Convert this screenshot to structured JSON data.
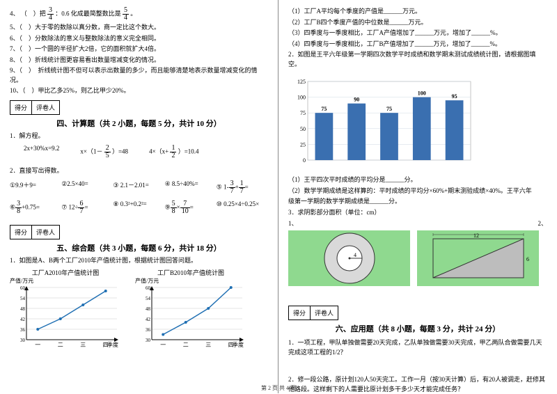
{
  "left": {
    "judge": [
      {
        "n": "4、",
        "t": "（　）把",
        "f1": {
          "n": "3",
          "d": "4"
        },
        "mid": "：0.6 化成最简整数比是",
        "f2": {
          "n": "5",
          "d": "4"
        },
        "end": "。"
      },
      {
        "n": "5、",
        "t": "（　）大于零的数除以真分数，商一定比这个数大。"
      },
      {
        "n": "6、",
        "t": "（　）分数除法的意义与整数除法的意义完全相同。"
      },
      {
        "n": "7、",
        "t": "（　）一个圆的半径扩大2倍，它的面积就扩大4倍。"
      },
      {
        "n": "8、",
        "t": "（　）折线统计图更容易看出数量增减变化的情况。"
      },
      {
        "n": "9、",
        "t": "（　）　折线统计图不但可以表示出数量的多少，而且能够清楚地表示数量增减变化的情况。"
      },
      {
        "n": "10、",
        "t": "（　）甲比乙多25%，则乙比甲少20%。"
      }
    ],
    "score_labels": {
      "a": "得分",
      "b": "评卷人"
    },
    "sec4_title": "四、计算题（共 2 小题，每题 5 分，共计 10 分）",
    "q1_label": "1．解方程。",
    "eqs": [
      "2x+30%x=9.2",
      "x×（1－",
      "）=48",
      "4×（x+",
      "）=10.4"
    ],
    "eq_frac1": {
      "n": "2",
      "d": "5"
    },
    "eq_frac2": {
      "n": "1",
      "d": "2"
    },
    "q2_label": "2．直接写出得数。",
    "calc": [
      "①9.9＋9=",
      "②2.5×40=",
      "③ 2.1－2.01=",
      "④ 8.5÷40%=",
      "⑤ 1-",
      "⑥",
      "+0.75=",
      "⑦ 12÷",
      "=",
      "⑧ 0.3²+0.2²=",
      "⑨",
      "×",
      "=",
      "⑩ 0.25×4÷0.25×"
    ],
    "calc_fracs": {
      "f5a": {
        "n": "3",
        "d": "7"
      },
      "f5b": {
        "n": "1",
        "d": "7"
      },
      "f6": {
        "n": "3",
        "d": "8"
      },
      "f7": {
        "n": "6",
        "d": "7"
      },
      "f9a": {
        "n": "5",
        "d": "8"
      },
      "f9b": {
        "n": "7",
        "d": "10"
      }
    },
    "sec5_title": "五、综合题（共 3 小题，每题 6 分，共计 18 分）",
    "q5_1": "1．如图是A、B两个工厂2010年产值统计图，根据统计图回答问题。",
    "chartA": {
      "title": "工厂A2010年产值统计图",
      "ylabel": "产值/万元",
      "xlabel": "季度",
      "yticks": [
        "30",
        "36",
        "42",
        "48",
        "54",
        "60"
      ],
      "xticks": [
        "一",
        "二",
        "三",
        "四"
      ],
      "points": [
        36,
        42,
        50,
        58
      ],
      "ymin": 30,
      "ymax": 60,
      "line_color": "#1f6fb3"
    },
    "chartB": {
      "title": "工厂B2010年产值统计图",
      "ylabel": "产值/万元",
      "xlabel": "季度",
      "yticks": [
        "30",
        "36",
        "42",
        "48",
        "54",
        "60"
      ],
      "xticks": [
        "一",
        "二",
        "三",
        "四"
      ],
      "points": [
        33,
        40,
        48,
        60
      ],
      "ymin": 30,
      "ymax": 60,
      "line_color": "#1f6fb3"
    }
  },
  "right": {
    "fill": [
      "（1）工厂A平均每个季度的产值是______万元。",
      "（2）工厂B四个季度产值的中位数是______万元。",
      "（3）四季度与一季度相比，工厂A产值增加了______万元，增加了______%。",
      "（4）四季度与一季度相比，工厂B产值增加了______万元，增加了______%。"
    ],
    "q2_label": "2．如图是王平六年级第一学期四次数学平时成绩和数学期末测试成绩统计图，请根据图填空。",
    "bar_chart": {
      "values": [
        75,
        90,
        75,
        100,
        95
      ],
      "labels": [
        "75",
        "90",
        "75",
        "100",
        "95"
      ],
      "yticks": [
        "0",
        "25",
        "50",
        "75",
        "100",
        "125"
      ],
      "ymax": 125,
      "bar_color": "#3a6fb0",
      "bg": "#ffffff",
      "grid": "#cfd8e2"
    },
    "bar_q1": "（1）王平四次平时成绩的平均分是______分。",
    "bar_q2a": "（2）数学学期成绩是这样算的：平时成绩的平均分×60%+期末测验成绩×40%。王平六年",
    "bar_q2b": "级第一学期的数学学期成绩是______分。",
    "q3_label": "3．求阴影部分面积（单位：cm）",
    "shape_labels": {
      "n1": "1、",
      "n2": "2、",
      "d4": "4",
      "d12": "12",
      "d6": "6"
    },
    "score_labels": {
      "a": "得分",
      "b": "评卷人"
    },
    "sec6_title": "六、应用题（共 8 小题，每题 3 分，共计 24 分）",
    "app1": "1．一项工程，甲队单独做需要20天完成，乙队单独做需要30天完成，甲乙两队合做需要几天完成这项工程的1/2？",
    "app2": "2．修一段公路，原计划120人50天完工。工作一月（按30天计算）后，有20人被调走，赶修其他路段。这样剩下的人需要比原计划多干多少天才能完成任务？"
  },
  "footer": "第 2 页 共 4 页"
}
